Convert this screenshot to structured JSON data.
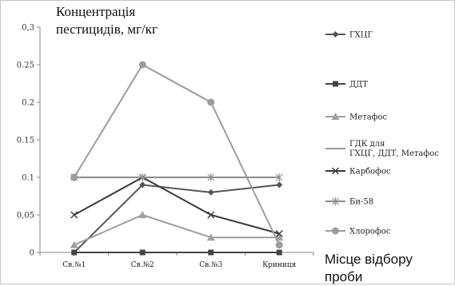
{
  "chart_data": {
    "type": "line",
    "ylabel": "Концентрація\nпестицидів, мг/кг",
    "xlabel": "Місце відбору\nпроби",
    "categories": [
      "Св.№1",
      "Св.№2",
      "Св.№3",
      "Криниця"
    ],
    "ylim": [
      0,
      0.3
    ],
    "yticks": [
      "0",
      "0,05",
      "0.1",
      "0.15",
      "0.2",
      "0.25",
      "0,3"
    ],
    "legend_position": "right",
    "series": [
      {
        "name": "ГХЦГ",
        "values": [
          0,
          0.09,
          0.08,
          0.09
        ],
        "color": "#555555",
        "marker": "diamond"
      },
      {
        "name": "ДДТ",
        "values": [
          0,
          0,
          0,
          0
        ],
        "color": "#444444",
        "marker": "square"
      },
      {
        "name": "Метафос",
        "values": [
          0.01,
          0.05,
          0.02,
          0.02
        ],
        "color": "#a0a0a0",
        "marker": "triangle"
      },
      {
        "name": "ГДК для\nГХЦГ, ДДТ, Метафос",
        "values": [
          0.1,
          0.1,
          0.1,
          0.1
        ],
        "color": "#9a9a9a",
        "marker": "none"
      },
      {
        "name": "Карбофос",
        "values": [
          0.05,
          0.1,
          0.05,
          0.025
        ],
        "color": "#3a3a3a",
        "marker": "x"
      },
      {
        "name": "Би-58",
        "values": [
          0.1,
          0.1,
          0.1,
          0.1
        ],
        "color": "#8c8c8c",
        "marker": "star"
      },
      {
        "name": "Хлорофос",
        "values": [
          0.1,
          0.25,
          0.2,
          0.01
        ],
        "color": "#9c9c9c",
        "marker": "circle"
      }
    ]
  }
}
